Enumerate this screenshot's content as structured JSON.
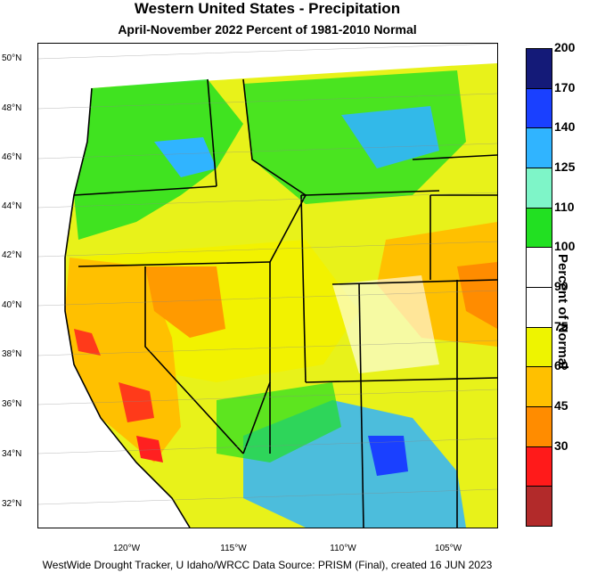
{
  "title": "Western United States - Precipitation",
  "subtitle": "April-November 2022  Percent of 1981-2010 Normal",
  "footer": "WestWide Drought Tracker, U Idaho/WRCC Data Source: PRISM (Final), created 16 JUN 2023",
  "legend": {
    "title": "Percent of Normal",
    "bins": [
      {
        "label": "",
        "color": "#b22a2a"
      },
      {
        "label": "30",
        "color": "#ff1a1a"
      },
      {
        "label": "45",
        "color": "#ff8c00"
      },
      {
        "label": "60",
        "color": "#ffc000"
      },
      {
        "label": "75",
        "color": "#eef400"
      },
      {
        "label": "90",
        "color": "#ffffff"
      },
      {
        "label": "100",
        "color": "#ffffff"
      },
      {
        "label": "110",
        "color": "#22e022"
      },
      {
        "label": "125",
        "color": "#7ef5c8"
      },
      {
        "label": "140",
        "color": "#30b4ff"
      },
      {
        "label": "170",
        "color": "#1a40ff"
      },
      {
        "label": "200",
        "color": "#141a78"
      }
    ]
  },
  "latitudes": [
    "50°N",
    "48°N",
    "46°N",
    "44°N",
    "42°N",
    "40°N",
    "38°N",
    "36°N",
    "34°N",
    "32°N"
  ],
  "longitudes": [
    "120°W",
    "115°W",
    "110°W",
    "105°W"
  ]
}
